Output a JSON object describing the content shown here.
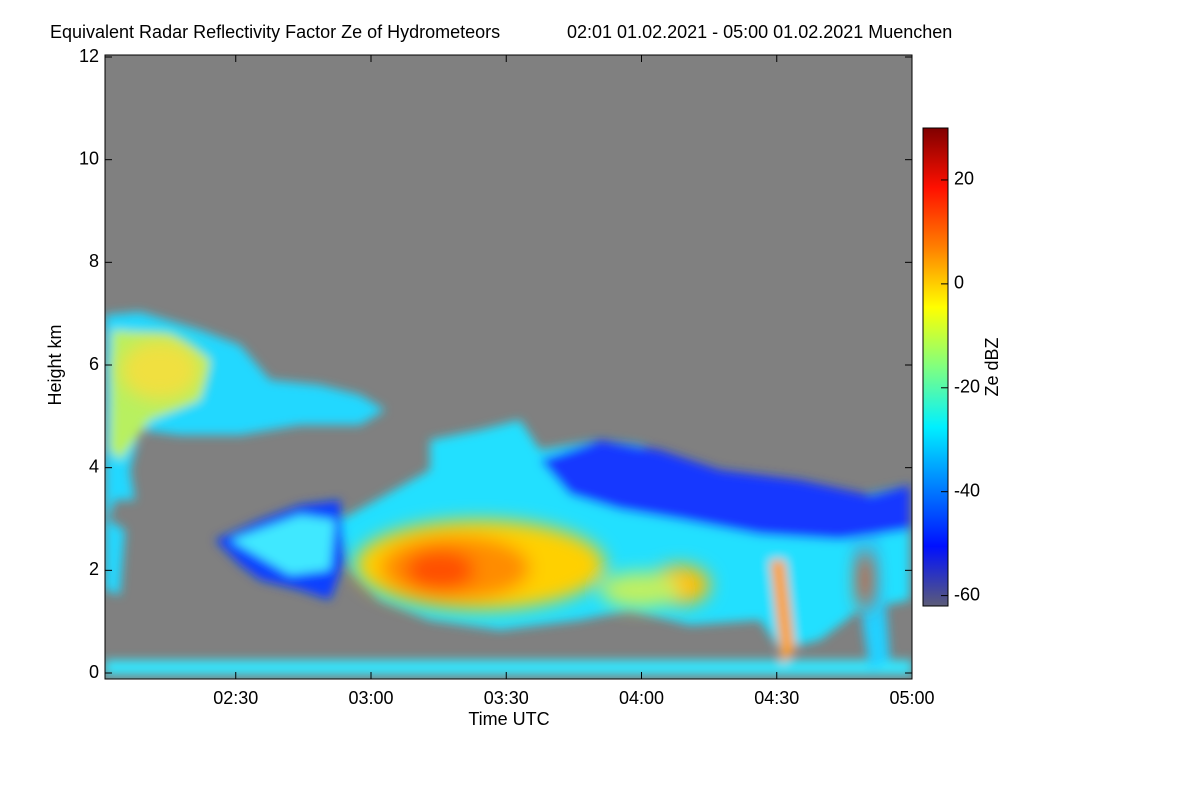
{
  "chart_data": {
    "type": "heatmap",
    "title": "Equivalent Radar Reflectivity Factor Ze of Hydrometeors",
    "subtitle": "02:01 01.02.2021 - 05:00 01.02.2021 Muenchen",
    "x_label": "Time UTC",
    "y_label": "Height km",
    "xlim": [
      121,
      300
    ],
    "xticks": [
      {
        "value": 150,
        "label": "02:30"
      },
      {
        "value": 180,
        "label": "03:00"
      },
      {
        "value": 210,
        "label": "03:30"
      },
      {
        "value": 240,
        "label": "04:00"
      },
      {
        "value": 270,
        "label": "04:30"
      },
      {
        "value": 300,
        "label": "05:00"
      }
    ],
    "ylim": [
      0,
      12
    ],
    "yticks": [
      0,
      2,
      4,
      6,
      8,
      10,
      12
    ],
    "colorbar_label": "Ze dBZ",
    "clim": [
      -62,
      30
    ],
    "cticks": [
      -60,
      -40,
      -20,
      0,
      20
    ],
    "colormap": [
      "#5c5c78",
      "#0010ff",
      "#0080ff",
      "#00f0ff",
      "#80ff80",
      "#ffff00",
      "#ff8000",
      "#ff1000",
      "#800000"
    ],
    "background": "#808080"
  }
}
